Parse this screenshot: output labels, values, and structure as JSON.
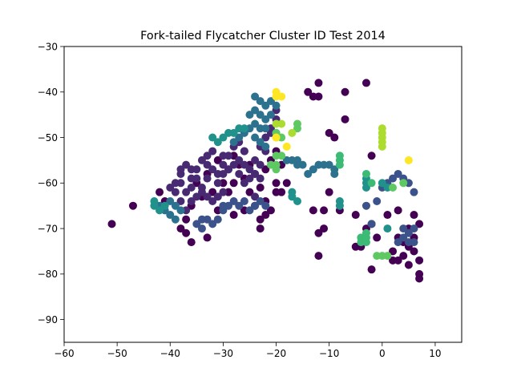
{
  "chart_data": {
    "type": "scatter",
    "title": "Fork-tailed Flycatcher Cluster ID Test 2014",
    "xlabel": "",
    "ylabel": "",
    "xlim": [
      -60,
      15
    ],
    "ylim": [
      -95,
      -30
    ],
    "xticks": [
      -60,
      -50,
      -40,
      -30,
      -20,
      -10,
      0,
      10
    ],
    "yticks": [
      -90,
      -80,
      -70,
      -60,
      -50,
      -40,
      -30
    ],
    "grid": false,
    "legend": "none",
    "colormap": "viridis",
    "clusters": [
      {
        "color": "#440154",
        "points": [
          [
            -51,
            -69
          ],
          [
            -47,
            -65
          ],
          [
            -42,
            -62
          ],
          [
            -41,
            -64
          ],
          [
            -38,
            -70
          ],
          [
            -37,
            -71
          ],
          [
            -36,
            -65
          ],
          [
            -35,
            -60
          ],
          [
            -34,
            -63
          ],
          [
            -33,
            -58
          ],
          [
            -32,
            -62
          ],
          [
            -31,
            -55
          ],
          [
            -30,
            -60
          ],
          [
            -29,
            -57
          ],
          [
            -28,
            -54
          ],
          [
            -27,
            -56
          ],
          [
            -26,
            -53
          ],
          [
            -25,
            -56
          ],
          [
            -24,
            -58
          ],
          [
            -23,
            -61
          ],
          [
            -22,
            -57
          ],
          [
            -21,
            -55
          ],
          [
            -20,
            -53
          ],
          [
            -19,
            -56
          ],
          [
            -24,
            -65
          ],
          [
            -23,
            -70
          ],
          [
            -22,
            -64
          ],
          [
            -21,
            -66
          ],
          [
            -20,
            -62
          ],
          [
            -14,
            -40
          ],
          [
            -13,
            -41
          ],
          [
            -12,
            -38
          ],
          [
            -12,
            -41
          ],
          [
            -10,
            -49
          ],
          [
            -9,
            -50
          ],
          [
            -7,
            -40
          ],
          [
            -7,
            -46
          ],
          [
            -3,
            -38
          ],
          [
            -2,
            -54
          ],
          [
            -2,
            -79
          ],
          [
            -12,
            -76
          ],
          [
            -13,
            -66
          ],
          [
            -12,
            -71
          ],
          [
            -11,
            -66
          ],
          [
            -11,
            -70
          ],
          [
            -10,
            -62
          ],
          [
            -8,
            -66
          ],
          [
            -5,
            -67
          ],
          [
            -5,
            -74
          ],
          [
            -4,
            -74
          ],
          [
            -3,
            -70
          ],
          [
            -2,
            -69
          ],
          [
            -1,
            -72
          ],
          [
            1,
            -67
          ],
          [
            2,
            -75
          ],
          [
            3,
            -66
          ],
          [
            4,
            -73
          ],
          [
            5,
            -70
          ],
          [
            6,
            -67
          ],
          [
            6,
            -75
          ],
          [
            7,
            -69
          ],
          [
            7,
            -77
          ],
          [
            7,
            -80
          ],
          [
            7,
            -81
          ],
          [
            3,
            -72
          ],
          [
            4,
            -76
          ],
          [
            5,
            -74
          ],
          [
            6,
            -72
          ],
          [
            5,
            -78
          ],
          [
            3,
            -77
          ],
          [
            2,
            -77
          ],
          [
            -20,
            -60
          ],
          [
            -19,
            -62
          ],
          [
            -18,
            -60
          ],
          [
            -37,
            -68
          ],
          [
            -36,
            -73
          ],
          [
            -33,
            -72
          ],
          [
            -31,
            -66
          ],
          [
            -29,
            -62
          ],
          [
            -28,
            -60
          ],
          [
            -26,
            -59
          ],
          [
            -25,
            -62
          ],
          [
            -26,
            -66
          ],
          [
            -28,
            -67
          ],
          [
            -23,
            -68
          ],
          [
            -22,
            -67
          ]
        ]
      },
      {
        "color": "#482a73",
        "points": [
          [
            -40,
            -61
          ],
          [
            -39,
            -62
          ],
          [
            -38,
            -58
          ],
          [
            -37,
            -56
          ],
          [
            -36,
            -57
          ],
          [
            -35,
            -59
          ],
          [
            -34,
            -55
          ],
          [
            -33,
            -56
          ],
          [
            -32,
            -57
          ],
          [
            -31,
            -58
          ],
          [
            -30,
            -56
          ],
          [
            -29,
            -54
          ],
          [
            -28,
            -52
          ],
          [
            -27,
            -55
          ],
          [
            -26,
            -56
          ],
          [
            -25,
            -57
          ],
          [
            -24,
            -55
          ],
          [
            -23,
            -52
          ],
          [
            -22,
            -50
          ],
          [
            -21,
            -49
          ],
          [
            -20,
            -46
          ],
          [
            -20,
            -44
          ],
          [
            -21,
            -48
          ],
          [
            -22,
            -53
          ],
          [
            -23,
            -56
          ],
          [
            -24,
            -58
          ],
          [
            -37,
            -62
          ],
          [
            -36,
            -61
          ],
          [
            -35,
            -63
          ],
          [
            -34,
            -62
          ],
          [
            -33,
            -63
          ],
          [
            -32,
            -64
          ],
          [
            -31,
            -63
          ],
          [
            -30,
            -62
          ],
          [
            -38,
            -64
          ],
          [
            -37,
            -66
          ],
          [
            -36,
            -64
          ],
          [
            -39,
            -60
          ],
          [
            -38,
            -57
          ],
          [
            -35,
            -57
          ],
          [
            -33,
            -54
          ],
          [
            -32,
            -53
          ],
          [
            -30,
            -54
          ],
          [
            -29,
            -57
          ],
          [
            -27,
            -58
          ],
          [
            -26,
            -60
          ],
          [
            -25,
            -59
          ],
          [
            -24,
            -63
          ],
          [
            -23,
            -59
          ],
          [
            -28,
            -56
          ],
          [
            -27,
            -51
          ],
          [
            -26,
            -53
          ],
          [
            -38,
            -60
          ],
          [
            -36,
            -59
          ],
          [
            -34,
            -61
          ],
          [
            -33,
            -59
          ],
          [
            -31,
            -60
          ],
          [
            -30,
            -58
          ]
        ]
      },
      {
        "color": "#3b528b",
        "points": [
          [
            -35,
            -69
          ],
          [
            -34,
            -70
          ],
          [
            -33,
            -68
          ],
          [
            -32,
            -69
          ],
          [
            -31,
            -68
          ],
          [
            -30,
            -66
          ],
          [
            -29,
            -65
          ],
          [
            -28,
            -64
          ],
          [
            -27,
            -65
          ],
          [
            -26,
            -64
          ],
          [
            -25,
            -66
          ],
          [
            -24,
            -65
          ],
          [
            -23,
            -64
          ],
          [
            -22,
            -65
          ],
          [
            -3,
            -65
          ],
          [
            -2,
            -69
          ],
          [
            -1,
            -64
          ],
          [
            0,
            -61
          ],
          [
            1,
            -60
          ],
          [
            2,
            -59
          ],
          [
            3,
            -58
          ],
          [
            4,
            -59
          ],
          [
            5,
            -60
          ],
          [
            6,
            -62
          ],
          [
            5,
            -71
          ],
          [
            6,
            -70
          ],
          [
            4,
            -70
          ],
          [
            6,
            -73
          ],
          [
            5,
            -73
          ],
          [
            3,
            -73
          ],
          [
            4,
            -72
          ],
          [
            -34,
            -68
          ],
          [
            -30,
            -65
          ]
        ]
      },
      {
        "color": "#2c728e",
        "points": [
          [
            -24,
            -41
          ],
          [
            -23,
            -42
          ],
          [
            -22,
            -43
          ],
          [
            -22,
            -46
          ],
          [
            -23,
            -48
          ],
          [
            -24,
            -50
          ],
          [
            -24,
            -44
          ],
          [
            -23,
            -45
          ],
          [
            -22,
            -48
          ],
          [
            -21,
            -42
          ],
          [
            -21,
            -45
          ],
          [
            -20,
            -43
          ],
          [
            -25,
            -45
          ],
          [
            -25,
            -48
          ],
          [
            -26,
            -49
          ],
          [
            -27,
            -50
          ],
          [
            -28,
            -51
          ],
          [
            -23,
            -51
          ],
          [
            -22,
            -52
          ],
          [
            -20,
            -49
          ],
          [
            -17,
            -55
          ],
          [
            -16,
            -56
          ],
          [
            -15,
            -56
          ],
          [
            -14,
            -58
          ],
          [
            -13,
            -57
          ],
          [
            -12,
            -56
          ],
          [
            -9,
            -57
          ],
          [
            -9,
            -58
          ],
          [
            -10,
            -56
          ],
          [
            -11,
            -56
          ],
          [
            -18,
            -55
          ],
          [
            -16,
            -55
          ],
          [
            -42,
            -65
          ],
          [
            -41,
            -66
          ],
          [
            -40,
            -67
          ],
          [
            -39,
            -65
          ],
          [
            -40,
            -64
          ],
          [
            -39,
            -68
          ],
          [
            -38,
            -66
          ],
          [
            -24,
            -47
          ]
        ]
      },
      {
        "color": "#21918c",
        "points": [
          [
            -30,
            -50
          ],
          [
            -29,
            -49
          ],
          [
            -28,
            -49
          ],
          [
            -27,
            -48
          ],
          [
            -26,
            -48
          ],
          [
            -31,
            -51
          ],
          [
            -32,
            -50
          ],
          [
            -43,
            -65
          ],
          [
            -42,
            -66
          ],
          [
            -41,
            -65
          ],
          [
            -43,
            -64
          ],
          [
            -17,
            -62
          ],
          [
            -17,
            -63
          ],
          [
            -16,
            -64
          ],
          [
            -8,
            -64
          ],
          [
            -8,
            -65
          ],
          [
            -3,
            -59
          ],
          [
            -3,
            -60
          ],
          [
            -3,
            -61
          ],
          [
            0,
            -60
          ],
          [
            1,
            -61
          ],
          [
            1,
            -70
          ]
        ]
      },
      {
        "color": "#3bbb75",
        "points": [
          [
            -4,
            -72
          ],
          [
            -4,
            -73
          ],
          [
            -3,
            -73
          ],
          [
            -3,
            -72
          ],
          [
            -3,
            -71
          ],
          [
            -3,
            -58
          ],
          [
            -2,
            -60
          ],
          [
            -8,
            -54
          ],
          [
            -8,
            -55
          ],
          [
            -8,
            -56
          ]
        ]
      },
      {
        "color": "#5ec962",
        "points": [
          [
            -20,
            -54
          ],
          [
            -20,
            -56
          ],
          [
            -20,
            -57
          ],
          [
            -19,
            -54
          ],
          [
            -16,
            -47
          ],
          [
            -16,
            -48
          ],
          [
            -21,
            -56
          ],
          [
            0,
            -76
          ],
          [
            1,
            -76
          ],
          [
            -1,
            -76
          ],
          [
            2,
            -61
          ],
          [
            4,
            -60
          ],
          [
            -19,
            -50
          ],
          [
            -20,
            -49
          ]
        ]
      },
      {
        "color": "#addc30",
        "points": [
          [
            0,
            -48
          ],
          [
            0,
            -49
          ],
          [
            0,
            -50
          ],
          [
            0,
            -51
          ],
          [
            0,
            -52
          ],
          [
            -20,
            -47
          ],
          [
            -20,
            -50
          ],
          [
            -19,
            -47
          ],
          [
            -17,
            -49
          ]
        ]
      },
      {
        "color": "#fde725",
        "points": [
          [
            -20,
            -40
          ],
          [
            -20,
            -41
          ],
          [
            -19,
            -41
          ],
          [
            -18,
            -52
          ],
          [
            -20,
            -50
          ],
          [
            5,
            -55
          ]
        ]
      }
    ]
  }
}
